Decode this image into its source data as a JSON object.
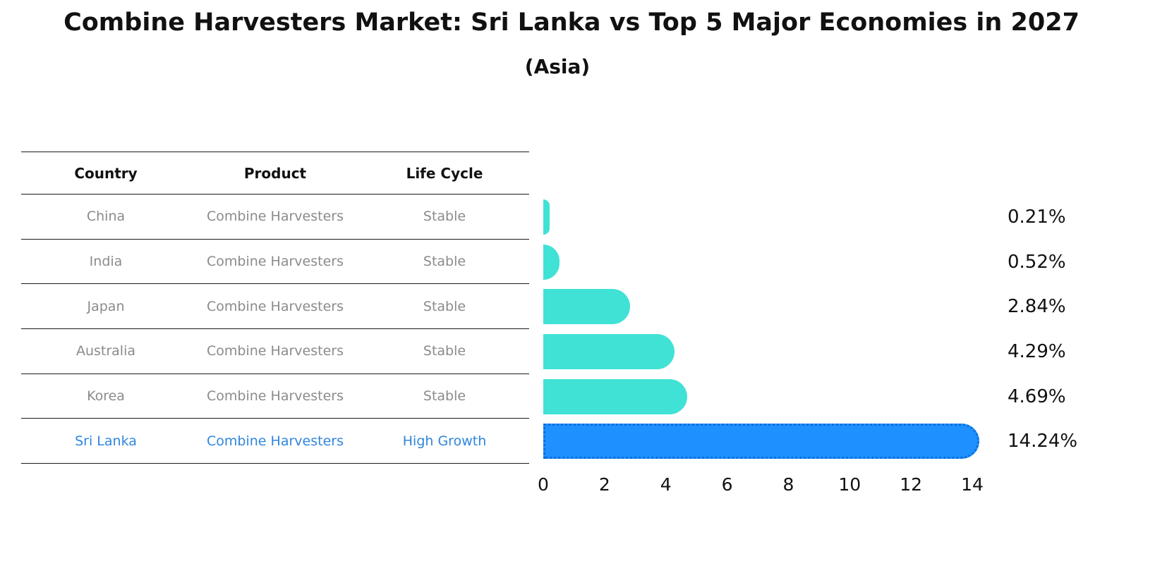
{
  "title": "Combine Harvesters Market: Sri Lanka vs Top 5 Major Economies in 2027",
  "subtitle": "(Asia)",
  "table": {
    "headers": [
      "Country",
      "Product",
      "Life Cycle"
    ],
    "rows": [
      {
        "country": "China",
        "product": "Combine Harvesters",
        "life_cycle": "Stable",
        "highlight": false
      },
      {
        "country": "India",
        "product": "Combine Harvesters",
        "life_cycle": "Stable",
        "highlight": false
      },
      {
        "country": "Japan",
        "product": "Combine Harvesters",
        "life_cycle": "Stable",
        "highlight": false
      },
      {
        "country": "Australia",
        "product": "Combine Harvesters",
        "life_cycle": "Stable",
        "highlight": false
      },
      {
        "country": "Korea",
        "product": "Combine Harvesters",
        "life_cycle": "Stable",
        "highlight": false
      },
      {
        "country": "Sri Lanka",
        "product": "Combine Harvesters",
        "life_cycle": "High Growth",
        "highlight": true
      }
    ]
  },
  "chart_data": {
    "type": "bar",
    "orientation": "horizontal",
    "title": "Combine Harvesters Market: Sri Lanka vs Top 5 Major Economies in 2027 (Asia)",
    "categories": [
      "China",
      "India",
      "Japan",
      "Australia",
      "Korea",
      "Sri Lanka"
    ],
    "values": [
      0.21,
      0.52,
      2.84,
      4.29,
      4.69,
      14.24
    ],
    "value_labels": [
      "0.21%",
      "0.52%",
      "2.84%",
      "4.29%",
      "4.69%",
      "14.24%"
    ],
    "x_ticks": [
      0,
      2,
      4,
      6,
      8,
      10,
      12,
      14
    ],
    "xlim": [
      0,
      15
    ],
    "xlabel": "",
    "ylabel": "",
    "grid": false,
    "legend": false,
    "highlight_index": 5,
    "bar_colors": {
      "default": "#40E2D6",
      "highlight": "#1E90FF"
    }
  },
  "colors": {
    "title_text": "#111111",
    "header_text": "#111111",
    "row_text": "#8b8b8b",
    "highlight_text": "#2E86DE",
    "table_line": "#1a1a1a"
  }
}
